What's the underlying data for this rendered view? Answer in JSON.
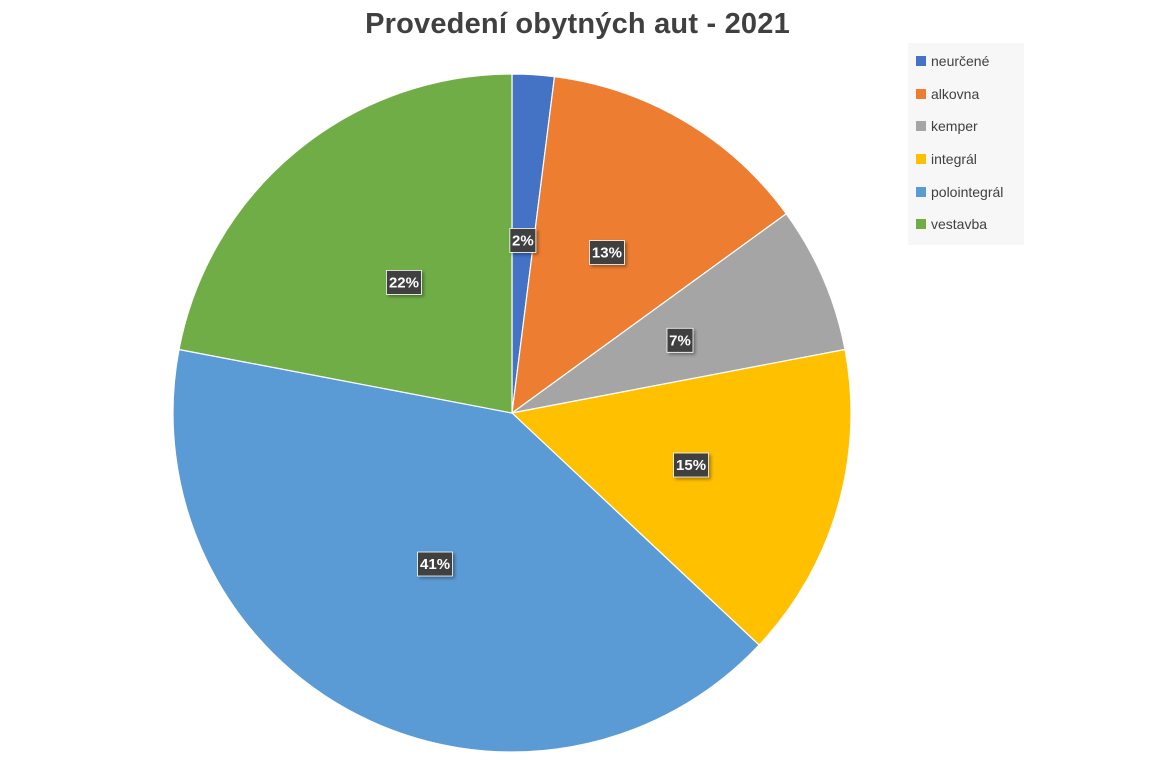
{
  "chart_data": {
    "type": "pie",
    "title": "Provedení obytných aut - 2021",
    "legend_position": "top-right",
    "slices": [
      {
        "name": "neurčené",
        "value": 2,
        "label": "2%",
        "color": "#4472C4"
      },
      {
        "name": "alkovna",
        "value": 13,
        "label": "13%",
        "color": "#ED7D31"
      },
      {
        "name": "kemper",
        "value": 7,
        "label": "7%",
        "color": "#A5A5A5"
      },
      {
        "name": "integrál",
        "value": 15,
        "label": "15%",
        "color": "#FFC000"
      },
      {
        "name": "polointegrál",
        "value": 41,
        "label": "41%",
        "color": "#5B9BD5"
      },
      {
        "name": "vestavba",
        "value": 22,
        "label": "22%",
        "color": "#70AD47"
      }
    ]
  }
}
